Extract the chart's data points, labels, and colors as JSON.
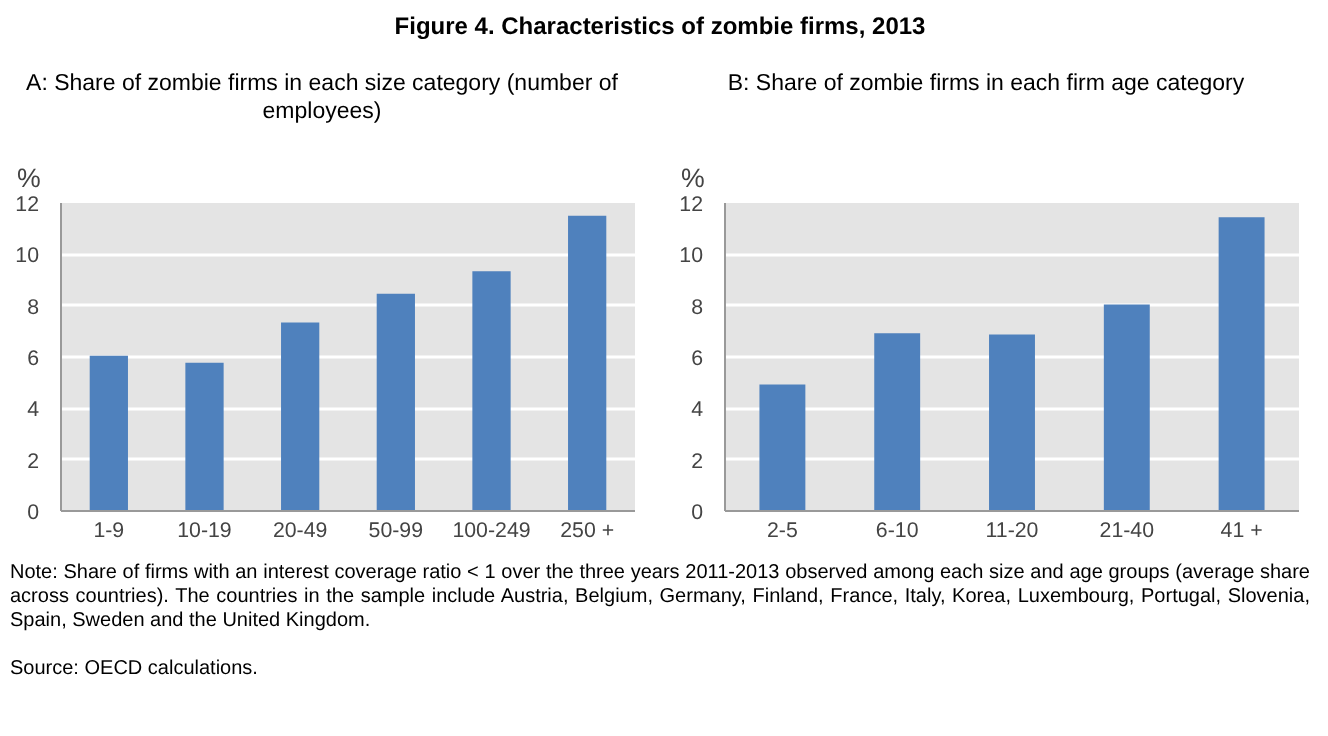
{
  "chart_data": [
    {
      "type": "bar",
      "title": "A: Share of zombie firms in each size category (number of employees)",
      "ylabel": "%",
      "categories": [
        "1-9",
        "10-19",
        "20-49",
        "50-99",
        "100-249",
        "250 +"
      ],
      "values": [
        6.05,
        5.78,
        7.34,
        8.46,
        9.34,
        11.5
      ],
      "color": "#4f81bd",
      "ylim": [
        0,
        12
      ],
      "yticks": [
        0,
        2,
        4,
        6,
        8,
        10,
        12
      ],
      "grid": "y",
      "annotations": [
        "Figure 4.  Characteristics of zombie firms, 2013"
      ]
    },
    {
      "type": "bar",
      "title": "B: Share of zombie firms in each firm age category",
      "ylabel": "%",
      "categories": [
        "2-5",
        "6-10",
        "11-20",
        "21-40",
        "41 +"
      ],
      "values": [
        4.93,
        6.93,
        6.88,
        8.05,
        11.44
      ],
      "color": "#4f81bd",
      "ylim": [
        0,
        12
      ],
      "yticks": [
        0,
        2,
        4,
        6,
        8,
        10,
        12
      ],
      "grid": "y",
      "annotations": [
        "Note: Share of firms with an interest coverage ratio < 1 over the three years 2011-2013 observed among each size and age groups (average share across countries). The countries in the sample include Austria, Belgium, Germany, Finland, France, Italy, Korea, Luxembourg, Portugal, Slovenia, Spain, Sweden and the United Kingdom.",
        "Source: OECD calculations."
      ]
    }
  ]
}
